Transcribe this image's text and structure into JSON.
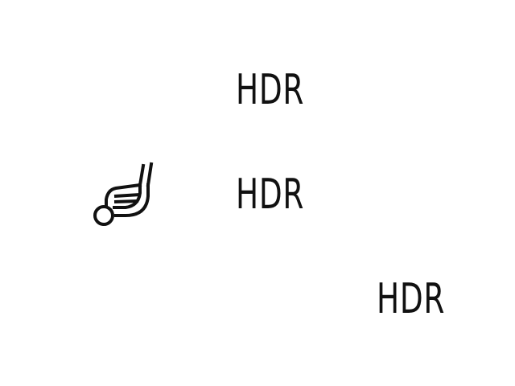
{
  "labels": [
    {
      "text": "HDR"
    },
    {
      "text": "HDR"
    },
    {
      "text": "HDR"
    }
  ],
  "icons": {
    "golf": "golf-club-ball-icon"
  },
  "colors": {
    "foreground": "#111111",
    "background": "#ffffff"
  }
}
